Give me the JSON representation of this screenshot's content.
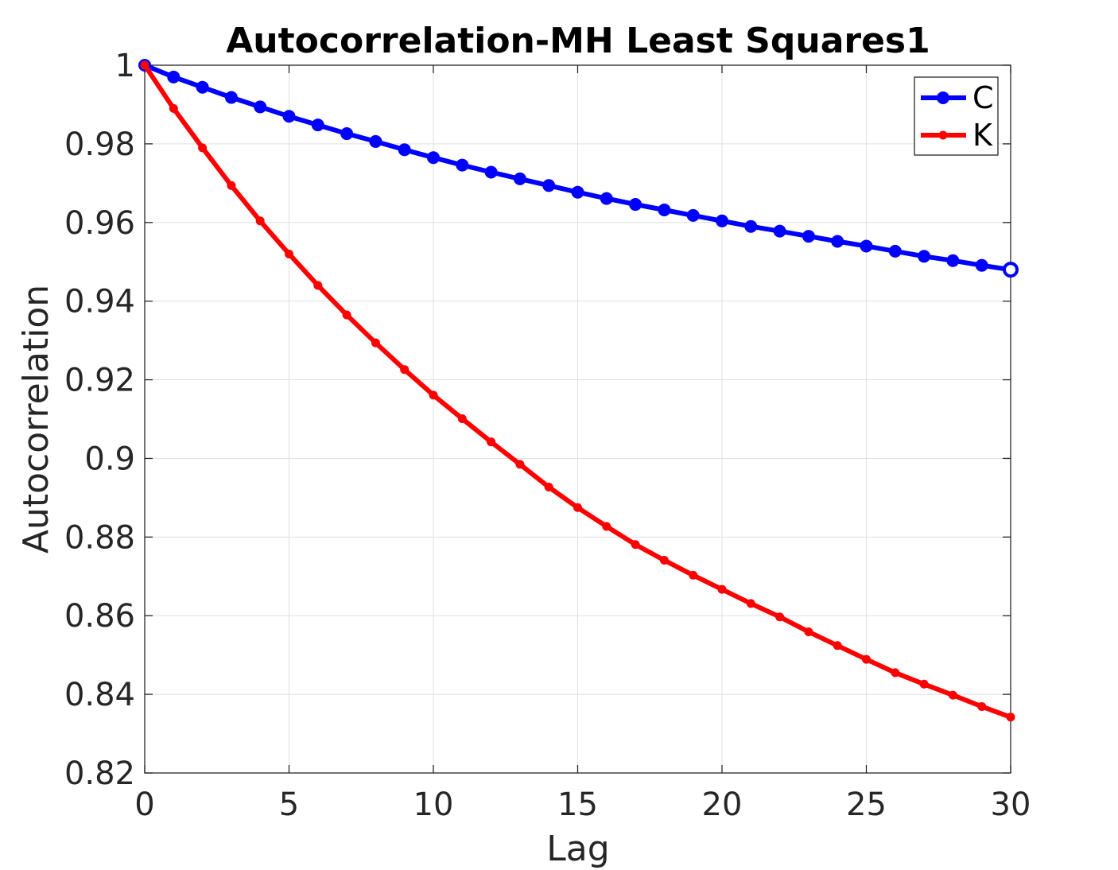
{
  "chart_data": {
    "type": "line",
    "title": "Autocorrelation-MH Least Squares1",
    "xlabel": "Lag",
    "ylabel": "Autocorrelation",
    "xlim": [
      0,
      30
    ],
    "ylim": [
      0.82,
      1
    ],
    "xticks": [
      0,
      5,
      10,
      15,
      20,
      25,
      30
    ],
    "xtick_labels": [
      "0",
      "5",
      "10",
      "15",
      "20",
      "25",
      "30"
    ],
    "yticks": [
      0.82,
      0.84,
      0.86,
      0.88,
      0.9,
      0.92,
      0.94,
      0.96,
      0.98,
      1
    ],
    "ytick_labels": [
      "0.82",
      "0.84",
      "0.86",
      "0.88",
      "0.9",
      "0.92",
      "0.94",
      "0.96",
      "0.98",
      "1"
    ],
    "grid": true,
    "legend_position": "top-right",
    "x": [
      0,
      1,
      2,
      3,
      4,
      5,
      6,
      7,
      8,
      9,
      10,
      11,
      12,
      13,
      14,
      15,
      16,
      17,
      18,
      19,
      20,
      21,
      22,
      23,
      24,
      25,
      26,
      27,
      28,
      29,
      30
    ],
    "series": [
      {
        "name": "C",
        "color": "#0000ff",
        "marker": "large-circle",
        "values": [
          1.0,
          0.997,
          0.9944,
          0.9918,
          0.9894,
          0.987,
          0.9848,
          0.9826,
          0.9806,
          0.9785,
          0.9765,
          0.9746,
          0.9728,
          0.9711,
          0.9694,
          0.9677,
          0.9661,
          0.9646,
          0.9632,
          0.9618,
          0.9604,
          0.959,
          0.9578,
          0.9565,
          0.9552,
          0.954,
          0.9527,
          0.9514,
          0.9503,
          0.9491,
          0.948
        ]
      },
      {
        "name": "K",
        "color": "#ff0000",
        "marker": "small-dot",
        "values": [
          1.0,
          0.989,
          0.979,
          0.9694,
          0.9604,
          0.952,
          0.944,
          0.9365,
          0.9294,
          0.9226,
          0.9161,
          0.9101,
          0.9042,
          0.8985,
          0.8927,
          0.8875,
          0.8827,
          0.8781,
          0.8741,
          0.8703,
          0.8667,
          0.8631,
          0.8597,
          0.8559,
          0.8524,
          0.8489,
          0.8455,
          0.8426,
          0.8398,
          0.8369,
          0.8342
        ]
      }
    ]
  }
}
